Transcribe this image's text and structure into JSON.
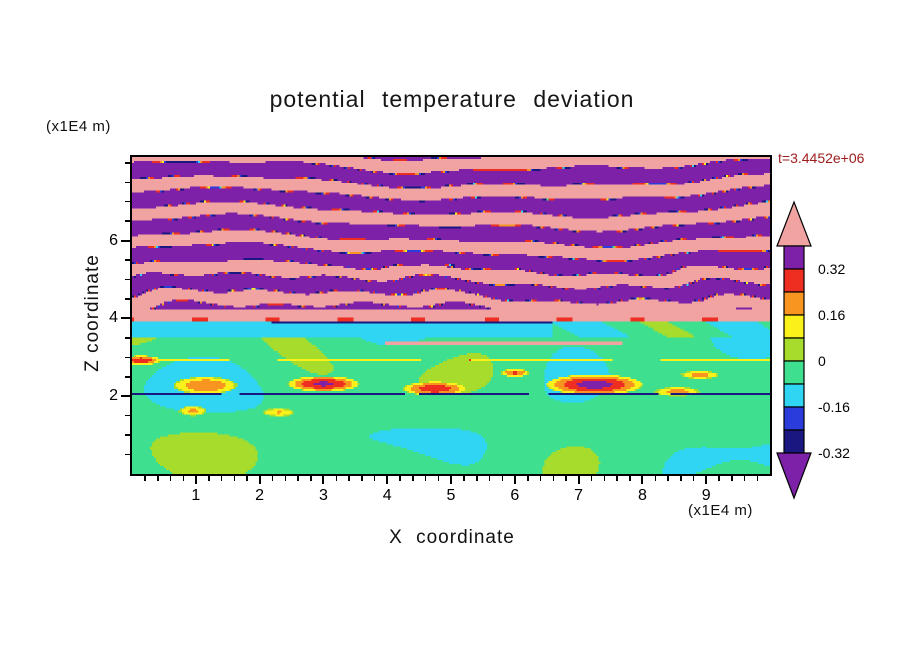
{
  "chart_data": {
    "type": "heatmap",
    "title": "potential temperature deviation",
    "xlabel": "X coordinate",
    "ylabel": "Z coordinate",
    "x_units_label": "(x1E4 m)",
    "y_units_label": "(x1E4 m)",
    "time_annotation": "t=3.4452e+06",
    "annotation_color": "#9E1B1B",
    "xlim": [
      0,
      10
    ],
    "ylim": [
      0,
      8.15
    ],
    "x_ticks": [
      1,
      2,
      3,
      4,
      5,
      6,
      7,
      8,
      9
    ],
    "y_ticks": [
      2,
      4,
      6
    ],
    "x_minor_step": 0.2,
    "y_minor_step": 0.5,
    "grid": false,
    "palette": {
      "levels": [
        -0.32,
        -0.24,
        -0.16,
        -0.08,
        0,
        0.08,
        0.16,
        0.24,
        0.32,
        0.4
      ],
      "colors": [
        "#7D22A8",
        "#1B1780",
        "#2A3CDB",
        "#2FD5F2",
        "#3EE08F",
        "#A7DC2C",
        "#FAF11B",
        "#F89420",
        "#EE2E20",
        "#7D22A8",
        "#F0A3A0"
      ]
    },
    "colorbar": {
      "position": "right",
      "arrow_top_color": "#F0A3A0",
      "arrow_bottom_color": "#7D22A8",
      "tick_labels": [
        "0.32",
        "0.16",
        "0",
        "-0.16",
        "-0.32"
      ],
      "bands_top_to_bottom": [
        {
          "color": "#7D22A8",
          "label_at_bottom": "0.32"
        },
        {
          "color": "#EE2E20",
          "label_at_bottom": ""
        },
        {
          "color": "#F89420",
          "label_at_bottom": "0.16"
        },
        {
          "color": "#FAF11B",
          "label_at_bottom": ""
        },
        {
          "color": "#A7DC2C",
          "label_at_bottom": "0"
        },
        {
          "color": "#3EE08F",
          "label_at_bottom": ""
        },
        {
          "color": "#2FD5F2",
          "label_at_bottom": "-0.16"
        },
        {
          "color": "#2A3CDB",
          "label_at_bottom": ""
        },
        {
          "color": "#1B1780",
          "label_at_bottom": "-0.32"
        }
      ]
    },
    "features": [
      {
        "region": "z > 4.2 (x1E4 m)",
        "value_range": "saturated, alternating > +0.4 and < -0.32",
        "description": "gravity-wave region: wavy quasi-horizontal bands of pink (strong positive) and purple (strong negative) deviation with thin multicolour filaments along band edges, more broken/filamented toward the bottom of the region"
      },
      {
        "region": "z ~ 3.9 - 4.2",
        "value_range": "~ +0.4 and above",
        "description": "continuous salmon/pink band spanning the full x range with scattered red flecks"
      },
      {
        "region": "z ~ 3.5 - 3.9",
        "value_range": "-0.16 to -0.08",
        "description": "cyan layer, brightest between x ~ 2.3 and 5.7, thin navy filament at its top edge; east of x ~ 6.6 it breaks into green mottling"
      },
      {
        "region": "z ~ 3.3 - 3.4",
        "value_range": "~ +0.4",
        "description": "thin salmon filament between x ~ 3.3 and 7.7"
      },
      {
        "region": "z ~ 2.0 - 2.1",
        "value_range": "~ -0.3",
        "description": "thin broken navy line across most of the domain"
      },
      {
        "region": "z ~ 2.1 - 2.6",
        "value_range": "up to ~ +0.36",
        "description": "localized warm anomalies (red/orange/yellow rings) near x ~ 1.1, 3.0, 4.8, 7.2, 8.6"
      },
      {
        "region": "z < 3.5 background",
        "value_range": "-0.08 to +0.08",
        "description": "weak deviations: spring-green background with large yellow-green patches"
      }
    ]
  }
}
